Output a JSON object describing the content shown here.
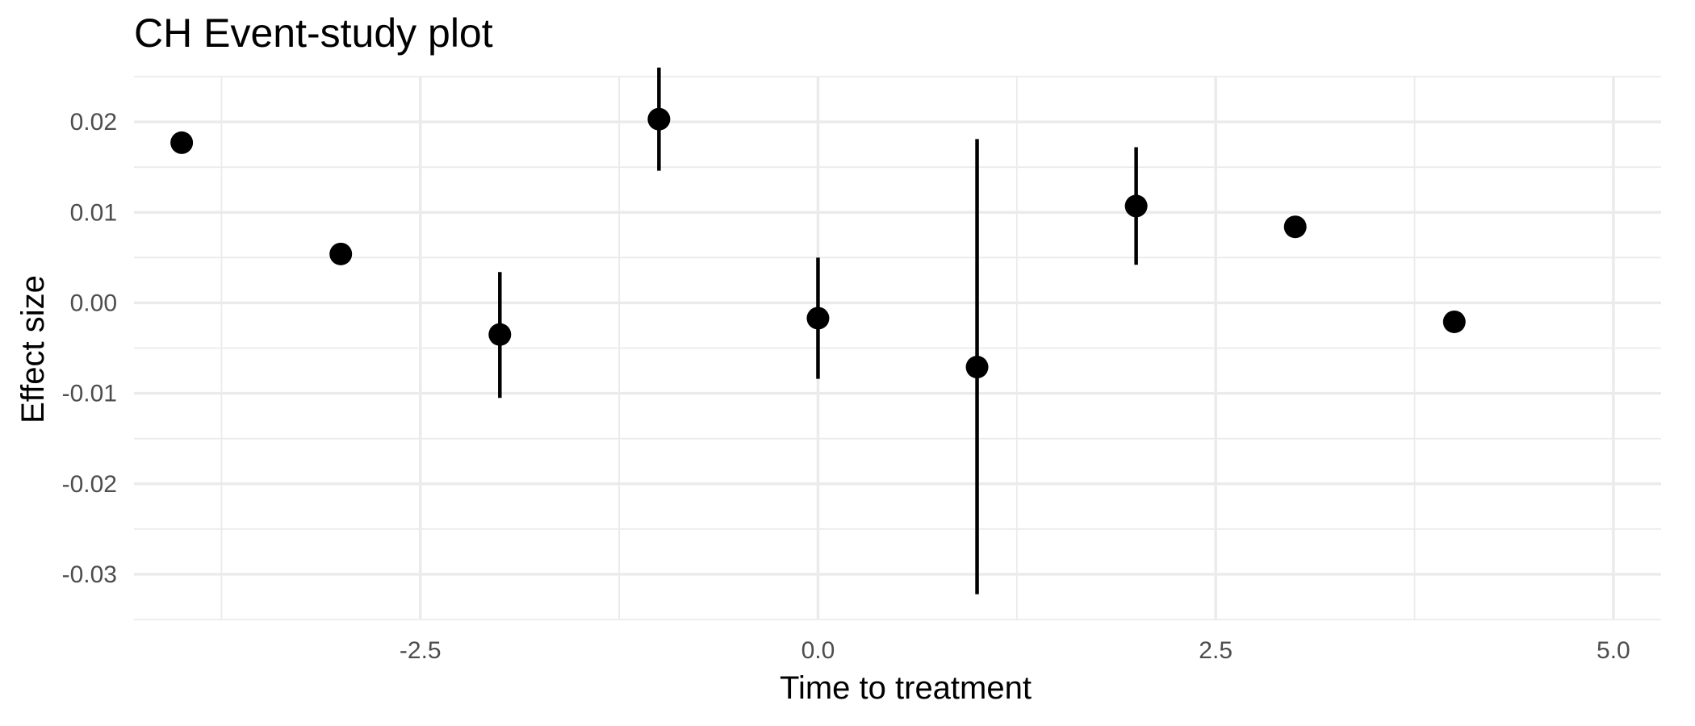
{
  "chart_data": {
    "type": "scatter",
    "title": "CH Event-study plot",
    "xlabel": "Time to treatment",
    "ylabel": "Effect size",
    "xlim": [
      -4.3,
      5.3
    ],
    "ylim": [
      -0.035,
      0.025
    ],
    "x_ticks": [
      -2.5,
      0.0,
      2.5,
      5.0
    ],
    "x_tick_labels": [
      "-2.5",
      "0.0",
      "2.5",
      "5.0"
    ],
    "x_minor_ticks": [
      -3.75,
      -1.25,
      1.25,
      3.75
    ],
    "y_ticks": [
      -0.03,
      -0.02,
      -0.01,
      0.0,
      0.01,
      0.02
    ],
    "y_tick_labels": [
      "-0.03",
      "-0.02",
      "-0.01",
      "0.00",
      "0.01",
      "0.02"
    ],
    "y_minor_ticks": [
      -0.035,
      -0.025,
      -0.015,
      -0.005,
      0.005,
      0.015,
      0.025
    ],
    "grid": true,
    "legend": "none",
    "points": [
      {
        "x": -4,
        "y": 0.0177,
        "lower": null,
        "upper": null
      },
      {
        "x": -3,
        "y": 0.0054,
        "lower": null,
        "upper": null
      },
      {
        "x": -2,
        "y": -0.0035,
        "lower": -0.0105,
        "upper": 0.0034
      },
      {
        "x": -1,
        "y": 0.0203,
        "lower": 0.0146,
        "upper": 0.026
      },
      {
        "x": 0,
        "y": -0.0017,
        "lower": -0.0084,
        "upper": 0.005
      },
      {
        "x": 1,
        "y": -0.0071,
        "lower": -0.0322,
        "upper": 0.0181
      },
      {
        "x": 2,
        "y": 0.0107,
        "lower": 0.0042,
        "upper": 0.0172
      },
      {
        "x": 3,
        "y": 0.0084,
        "lower": null,
        "upper": null
      },
      {
        "x": 4,
        "y": -0.0021,
        "lower": null,
        "upper": null
      }
    ]
  }
}
